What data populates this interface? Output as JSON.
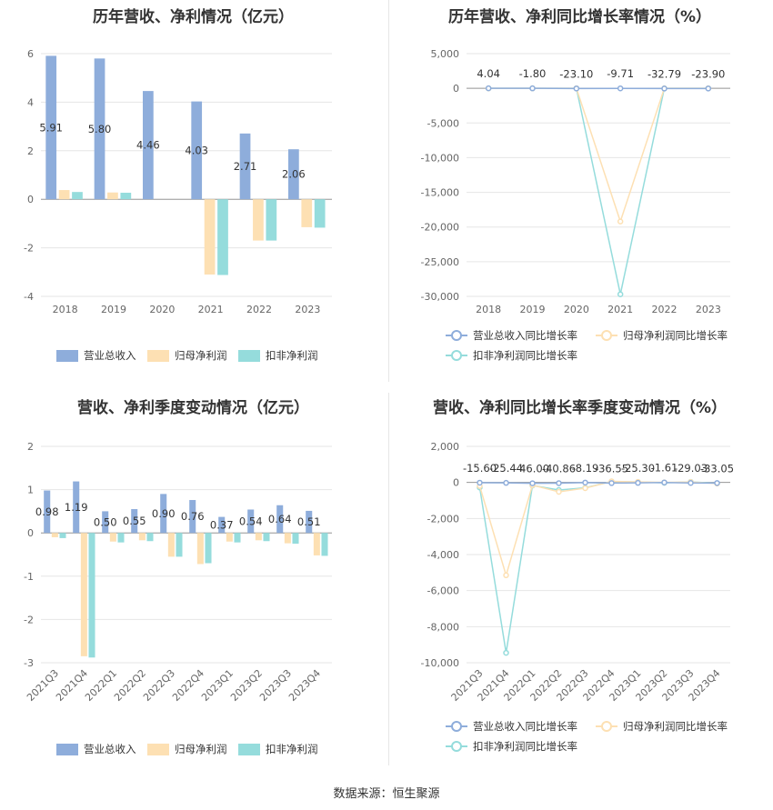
{
  "colors": {
    "revenue": "#8eaddb",
    "net_profit": "#fde0b3",
    "deducted_profit": "#95dcdc",
    "grid": "#e6e6e6",
    "axis_text": "#666666"
  },
  "source_text": "数据来源：恒生聚源",
  "chart_data": [
    {
      "type": "bar",
      "title": "历年营收、净利情况（亿元）",
      "categories": [
        "2018",
        "2019",
        "2020",
        "2021",
        "2022",
        "2023"
      ],
      "series": [
        {
          "name": "营业总收入",
          "values": [
            5.91,
            5.8,
            4.46,
            4.03,
            2.71,
            2.06
          ]
        },
        {
          "name": "归母净利润",
          "values": [
            0.38,
            0.28,
            0.0,
            -3.1,
            -1.7,
            -1.15
          ]
        },
        {
          "name": "扣非净利润",
          "values": [
            0.3,
            0.27,
            0.0,
            -3.12,
            -1.7,
            -1.17
          ]
        }
      ],
      "data_labels": [
        "5.91",
        "5.80",
        "4.46",
        "4.03",
        "2.71",
        "2.06"
      ],
      "ylim": [
        -4,
        6
      ],
      "yticks": [
        "-4",
        "-2",
        "0",
        "2",
        "4",
        "6"
      ],
      "grid": true,
      "legend": "bottom"
    },
    {
      "type": "line",
      "title": "历年营收、净利同比增长率情况（%）",
      "categories": [
        "2018",
        "2019",
        "2020",
        "2021",
        "2022",
        "2023"
      ],
      "series": [
        {
          "name": "营业总收入同比增长率",
          "values": [
            4.04,
            -1.8,
            -23.1,
            -9.71,
            -32.79,
            -23.9
          ]
        },
        {
          "name": "归母净利润同比增长率",
          "values": [
            0,
            0,
            0,
            -19200,
            0,
            0
          ]
        },
        {
          "name": "扣非净利润同比增长率",
          "values": [
            0,
            0,
            0,
            -29700,
            0,
            0
          ]
        }
      ],
      "data_labels": [
        "4.04",
        "-1.80",
        "-23.10",
        "-9.71",
        "-32.79",
        "-23.90"
      ],
      "ylim": [
        -30000,
        5000
      ],
      "yticks": [
        "-30,000",
        "-25,000",
        "-20,000",
        "-15,000",
        "-10,000",
        "-5,000",
        "0",
        "5,000"
      ],
      "grid": true,
      "legend": "bottom"
    },
    {
      "type": "bar",
      "title": "营收、净利季度变动情况（亿元）",
      "categories": [
        "2021Q3",
        "2021Q4",
        "2022Q1",
        "2022Q2",
        "2022Q3",
        "2022Q4",
        "2023Q1",
        "2023Q2",
        "2023Q3",
        "2023Q4"
      ],
      "series": [
        {
          "name": "营业总收入",
          "values": [
            0.98,
            1.19,
            0.5,
            0.55,
            0.9,
            0.76,
            0.37,
            0.54,
            0.64,
            0.51
          ]
        },
        {
          "name": "归母净利润",
          "values": [
            -0.1,
            -2.85,
            -0.2,
            -0.17,
            -0.55,
            -0.72,
            -0.2,
            -0.17,
            -0.24,
            -0.52
          ]
        },
        {
          "name": "扣非净利润",
          "values": [
            -0.12,
            -2.88,
            -0.22,
            -0.19,
            -0.55,
            -0.7,
            -0.22,
            -0.19,
            -0.25,
            -0.53
          ]
        }
      ],
      "data_labels": [
        "0.98",
        "1.19",
        "0.50",
        "0.55",
        "0.90",
        "0.76",
        "0.37",
        "0.54",
        "0.64",
        "0.51"
      ],
      "ylim": [
        -3,
        2
      ],
      "yticks": [
        "-3",
        "-2",
        "-1",
        "0",
        "1",
        "2"
      ],
      "grid": true,
      "legend": "bottom"
    },
    {
      "type": "line",
      "title": "营收、净利同比增长率季度变动情况（%）",
      "categories": [
        "2021Q3",
        "2021Q4",
        "2022Q1",
        "2022Q2",
        "2022Q3",
        "2022Q4",
        "2023Q1",
        "2023Q2",
        "2023Q3",
        "2023Q4"
      ],
      "series": [
        {
          "name": "营业总收入同比增长率",
          "values": [
            -15.6,
            -25.44,
            -46.0,
            -40.86,
            -8.19,
            -36.55,
            -25.3,
            -1.61,
            -29.03,
            -33.05
          ]
        },
        {
          "name": "归母净利润同比增长率",
          "values": [
            -200,
            -5150,
            -150,
            -520,
            -320,
            60,
            30,
            0,
            20,
            -60
          ]
        },
        {
          "name": "扣非净利润同比增长率",
          "values": [
            -280,
            -9450,
            -170,
            -420,
            -300,
            50,
            20,
            -20,
            30,
            -40
          ]
        }
      ],
      "data_labels": [
        "-15.60",
        "-25.44",
        "-46.00",
        "-40.86",
        "-8.19",
        "-36.55",
        "-25.30",
        "-1.61",
        "-29.03",
        "-33.05"
      ],
      "ylim": [
        -10000,
        2000
      ],
      "yticks": [
        "-10,000",
        "-8,000",
        "-6,000",
        "-4,000",
        "-2,000",
        "0",
        "2,000"
      ],
      "grid": true,
      "legend": "bottom"
    }
  ]
}
